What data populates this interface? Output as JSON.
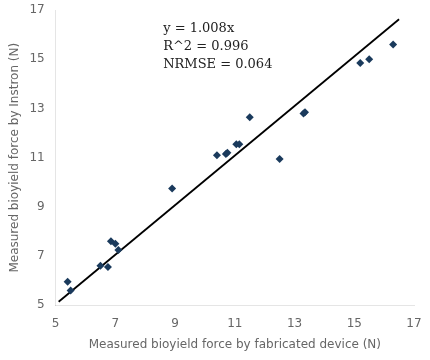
{
  "chart_data": {
    "type": "scatter",
    "xlabel": "Measured bioyield force by fabricated device (N)",
    "ylabel": "Measured bioyield force by Instron (N)",
    "series": [
      {
        "type": "scatter",
        "color": "#1a3a5c",
        "marker": "diamond",
        "x": [
          5.4,
          5.5,
          6.5,
          6.75,
          6.85,
          7.0,
          7.1,
          8.9,
          10.4,
          10.7,
          10.75,
          11.05,
          11.15,
          11.5,
          12.5,
          13.3,
          13.35,
          15.2,
          15.5,
          16.3
        ],
        "values": [
          5.95,
          5.6,
          6.6,
          6.55,
          7.6,
          7.5,
          7.25,
          9.75,
          11.1,
          11.15,
          11.2,
          11.55,
          11.55,
          12.65,
          10.95,
          12.8,
          12.85,
          14.85,
          15.0,
          15.6
        ]
      },
      {
        "type": "line",
        "color": "#000000",
        "line_style": "solid",
        "x": [
          5.1,
          16.5
        ],
        "values": [
          5.1408,
          16.632
        ]
      }
    ],
    "annotations": [
      "y = 1.008x",
      "R^2 = 0.996",
      "NRMSE = 0.064"
    ],
    "xlim": [
      5,
      17
    ],
    "ylim": [
      5,
      17
    ],
    "xticks": [
      5,
      7,
      9,
      11,
      13,
      15,
      17
    ],
    "yticks": [
      5,
      7,
      9,
      11,
      13,
      15,
      17
    ],
    "grid": false
  }
}
